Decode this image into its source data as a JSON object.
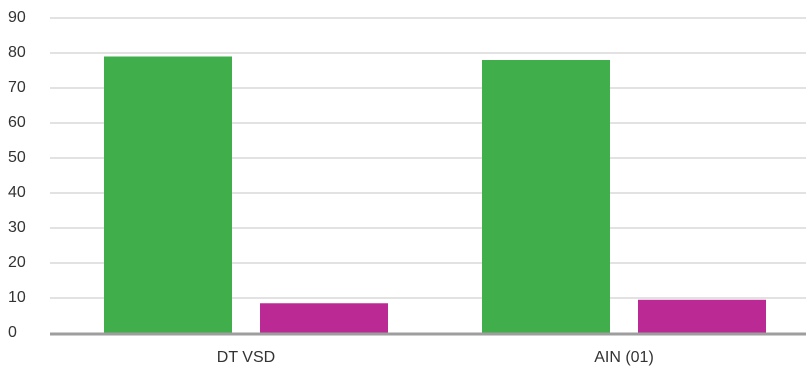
{
  "chart_data": {
    "type": "bar",
    "categories": [
      "DT VSD",
      "AIN (01)"
    ],
    "series": [
      {
        "values": [
          79,
          78
        ],
        "color": "#3fae4b"
      },
      {
        "values": [
          8.5,
          9.5
        ],
        "color": "#bb2a94"
      }
    ],
    "title": "",
    "xlabel": "",
    "ylabel": "",
    "ylim": [
      0,
      90
    ],
    "yticks": [
      0,
      10,
      20,
      30,
      40,
      50,
      60,
      70,
      80,
      90
    ],
    "grid": true,
    "legend": "none",
    "gridline_color": "#c4c4c4",
    "axis_color": "#9e9e9e"
  }
}
